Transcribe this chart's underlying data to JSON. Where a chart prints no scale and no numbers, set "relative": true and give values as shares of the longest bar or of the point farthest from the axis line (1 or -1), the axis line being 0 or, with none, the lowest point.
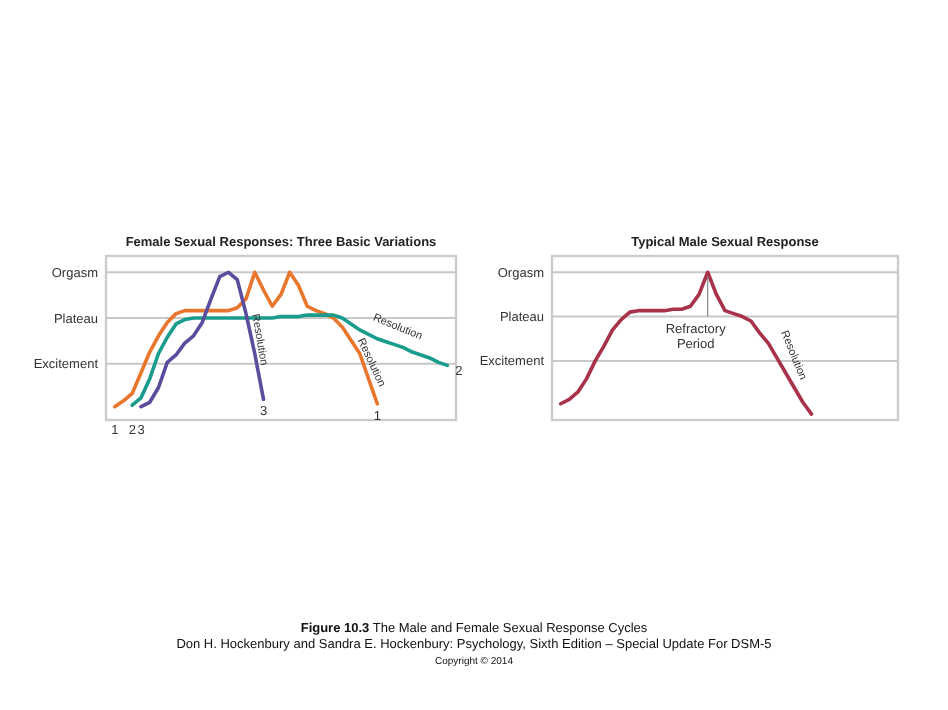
{
  "chart_data": [
    {
      "type": "line",
      "title": "Female Sexual Responses: Three Basic Variations",
      "relative": true,
      "categories": [
        null,
        null,
        null,
        null,
        null,
        null,
        null,
        null,
        null,
        null,
        null,
        null,
        null,
        null,
        null,
        null,
        null,
        null,
        null,
        null,
        null,
        null,
        null,
        null,
        null,
        null,
        null,
        null,
        null,
        null,
        null,
        null,
        null,
        null,
        null,
        null,
        null,
        null,
        null,
        null,
        null
      ],
      "legend": false,
      "marker": "none",
      "line_style": "solid",
      "ref_lines": [
        {
          "axis": "y",
          "value": 0.38,
          "label": "Excitement"
        },
        {
          "axis": "y",
          "value": 0.69,
          "label": "Plateau"
        },
        {
          "axis": "y",
          "value": 1,
          "label": "Orgasm"
        }
      ],
      "series": [
        {
          "name": "1",
          "color": "#e8762d",
          "values": [
            null,
            0.09,
            0.13,
            0.18,
            0.32,
            0.46,
            0.57,
            0.66,
            0.72,
            0.74,
            0.74,
            0.74,
            0.74,
            0.74,
            0.74,
            0.76,
            0.82,
            1,
            0.88,
            0.77,
            0.85,
            1,
            0.91,
            0.77,
            0.74,
            0.72,
            0.69,
            0.63,
            0.54,
            0.45,
            0.28,
            0.11,
            null,
            null,
            null,
            null,
            null,
            null,
            null,
            null,
            null
          ]
        },
        {
          "name": "2",
          "color": "#1a9c8c",
          "values": [
            null,
            null,
            null,
            0.1,
            0.15,
            0.28,
            0.45,
            0.56,
            0.65,
            0.68,
            0.69,
            0.69,
            0.69,
            0.69,
            0.69,
            0.69,
            0.69,
            0.69,
            0.69,
            0.69,
            0.7,
            0.7,
            0.7,
            0.71,
            0.71,
            0.71,
            0.71,
            0.69,
            0.65,
            0.61,
            0.58,
            0.55,
            0.53,
            0.51,
            0.49,
            0.46,
            0.44,
            0.42,
            0.39,
            0.37,
            null
          ]
        },
        {
          "name": "3",
          "color": "#5b4d9e",
          "values": [
            null,
            null,
            null,
            null,
            0.09,
            0.12,
            0.22,
            0.39,
            0.44,
            0.52,
            0.57,
            0.66,
            0.82,
            0.97,
            1,
            0.95,
            0.72,
            0.45,
            0.14,
            null,
            null,
            null,
            null,
            null,
            null,
            null,
            null,
            null,
            null,
            null,
            null,
            null,
            null,
            null,
            null,
            null,
            null,
            null,
            null,
            null,
            null
          ]
        }
      ],
      "annotations": [
        "Resolution",
        "Resolution",
        "Resolution"
      ]
    },
    {
      "type": "line",
      "title": "Typical Male Sexual Response",
      "relative": true,
      "categories": [
        null,
        null,
        null,
        null,
        null,
        null,
        null,
        null,
        null,
        null,
        null,
        null,
        null,
        null,
        null,
        null,
        null,
        null,
        null,
        null,
        null,
        null,
        null,
        null,
        null,
        null,
        null,
        null,
        null,
        null,
        null,
        null,
        null,
        null,
        null,
        null,
        null,
        null,
        null,
        null,
        null
      ],
      "legend": false,
      "marker": "none",
      "line_style": "solid",
      "ref_lines": [
        {
          "axis": "y",
          "value": 0.4,
          "label": "Excitement"
        },
        {
          "axis": "y",
          "value": 0.7,
          "label": "Plateau"
        },
        {
          "axis": "y",
          "value": 1,
          "label": "Orgasm"
        }
      ],
      "series": [
        {
          "color": "#a8324a",
          "values": [
            null,
            0.11,
            0.14,
            0.19,
            0.28,
            0.4,
            0.5,
            0.61,
            0.68,
            0.73,
            0.74,
            0.74,
            0.74,
            0.74,
            0.75,
            0.75,
            0.77,
            0.85,
            1,
            0.85,
            0.74,
            0.72,
            0.7,
            0.67,
            0.59,
            0.52,
            0.42,
            0.32,
            0.22,
            0.12,
            0.04,
            null,
            null,
            null,
            null,
            null,
            null,
            null,
            null,
            null,
            null
          ]
        }
      ],
      "annotations": [
        "Refractory Period",
        "Resolution",
        "Figure 10.3 The Male and Female Sexual Response Cycles",
        "Don H. Hockenbury and Sandra E. Hockenbury: Psychology, Sixth Edition – Special Update For DSM-5",
        "Copyright © 2014"
      ]
    }
  ]
}
